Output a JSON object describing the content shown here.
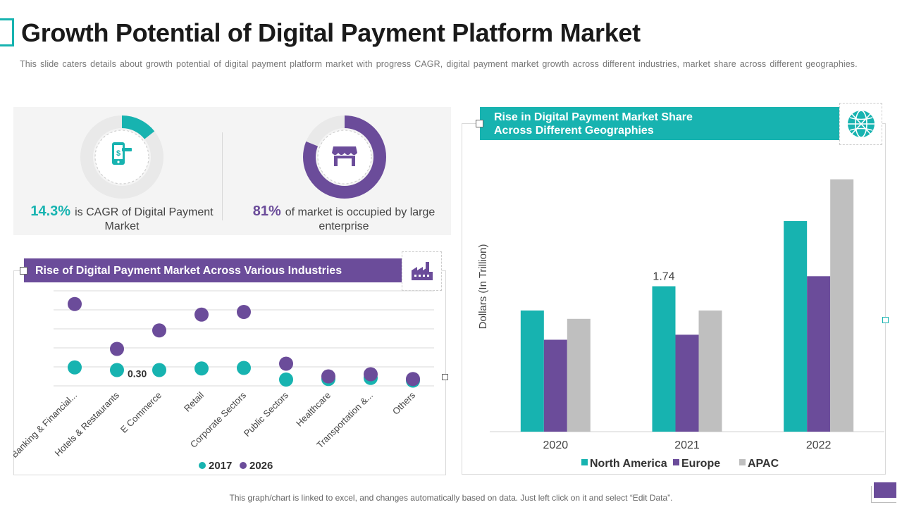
{
  "page": {
    "title": "Growth Potential of Digital Payment Platform Market",
    "subtitle": "This slide caters details about growth potential of digital payment platform market with progress CAGR, digital payment market growth across different industries, market share across different geographies.",
    "footer": "This graph/chart is linked to excel,  and changes automatically based on data. Just left click on it and select “Edit Data”."
  },
  "colors": {
    "teal": "#17b3b0",
    "purple": "#6b4c9a",
    "gray": "#bfbfbf"
  },
  "stats": [
    {
      "value": "14.3%",
      "label": "is CAGR of Digital Payment Market",
      "percent": 14.3,
      "color": "#17b3b0",
      "icon": "mobile-payment-icon"
    },
    {
      "value": "81%",
      "label": "of market is occupied by large enterprise",
      "percent": 81,
      "color": "#6b4c9a",
      "icon": "storefront-icon"
    }
  ],
  "industries_panel": {
    "header": "Rise of Digital Payment Market Across Various Industries",
    "icon": "factory-icon"
  },
  "geo_panel": {
    "header": "Rise in Digital Payment Market Share Across Different Geographies",
    "icon": "globe-icon"
  },
  "chart_data": [
    {
      "type": "scatter",
      "title": "Rise of Digital Payment Market Across Various Industries",
      "categories": [
        "Banking & Financial...",
        "Hotels & Restaurants",
        "E Commerce",
        "Retail",
        "Corporate Sectors",
        "Public Sectors",
        "Healthcare",
        "Transportation &...",
        "Others"
      ],
      "series": [
        {
          "name": "2017",
          "color": "#17b3b0",
          "values": [
            0.35,
            0.3,
            0.3,
            0.33,
            0.34,
            0.12,
            0.13,
            0.15,
            0.1
          ]
        },
        {
          "name": "2026",
          "color": "#6b4c9a",
          "values": [
            1.55,
            0.7,
            1.05,
            1.35,
            1.4,
            0.42,
            0.18,
            0.22,
            0.13
          ]
        }
      ],
      "ylim": [
        0,
        1.8
      ],
      "gridlines": 5,
      "data_labels": [
        {
          "series": 0,
          "index": 1,
          "text": "0.30"
        }
      ],
      "legend": "bottom"
    },
    {
      "type": "bar",
      "title": "Rise in Digital Payment Market Share Across Different Geographies",
      "categories": [
        "2020",
        "2021",
        "2022"
      ],
      "series": [
        {
          "name": "North America",
          "color": "#17b3b0",
          "values": [
            1.45,
            1.74,
            2.52
          ]
        },
        {
          "name": "Europe",
          "color": "#6b4c9a",
          "values": [
            1.1,
            1.16,
            1.86
          ]
        },
        {
          "name": "APAC",
          "color": "#bfbfbf",
          "values": [
            1.35,
            1.45,
            3.02
          ]
        }
      ],
      "ylabel": "Dollars (In Trillion)",
      "ylim": [
        0,
        3.0
      ],
      "data_labels": [
        {
          "series": 0,
          "index": 1,
          "text": "1.74"
        }
      ],
      "legend": "bottom"
    }
  ]
}
